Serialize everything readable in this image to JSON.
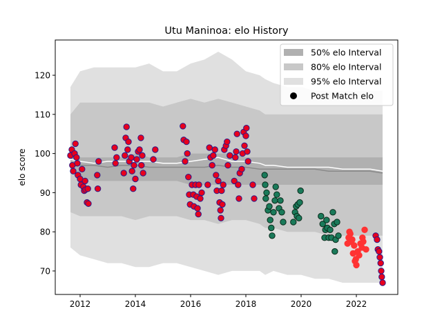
{
  "chart_data": {
    "type": "scatter",
    "title": "Utu Maninoa: elo History",
    "xlabel": "",
    "ylabel": "elo score",
    "xlim": [
      2011.1,
      2023.5
    ],
    "ylim": [
      64,
      129
    ],
    "x_ticks": [
      2012,
      2014,
      2016,
      2018,
      2020,
      2022
    ],
    "y_ticks": [
      70,
      80,
      90,
      100,
      110,
      120
    ],
    "grid": false,
    "legend_position": "top-right",
    "legend": [
      {
        "label": "50% elo Interval",
        "kind": "patch",
        "color": "#b0b0b0"
      },
      {
        "label": "80% elo Interval",
        "kind": "patch",
        "color": "#c8c8c8"
      },
      {
        "label": "95% elo Interval",
        "kind": "patch",
        "color": "#e0e0e0"
      },
      {
        "label": "Post Match elo",
        "kind": "marker",
        "color": "#000000"
      }
    ],
    "bands": {
      "x": [
        2011.65,
        2012.0,
        2012.5,
        2013.0,
        2013.5,
        2014.0,
        2014.5,
        2015.0,
        2015.5,
        2016.0,
        2016.5,
        2017.0,
        2017.5,
        2018.0,
        2018.5,
        2018.7,
        2019.0,
        2019.5,
        2020.0,
        2020.5,
        2021.0,
        2021.5,
        2022.0,
        2022.5,
        2022.95
      ],
      "p95_low": [
        76,
        74,
        73,
        72,
        72,
        71,
        71,
        72,
        72,
        71,
        70,
        69,
        70,
        70,
        70,
        69,
        70,
        69,
        69,
        68,
        68,
        67,
        67,
        67,
        67
      ],
      "p95_high": [
        117,
        121,
        122,
        122,
        122,
        122,
        123,
        121,
        121,
        123,
        124,
        126,
        124,
        121,
        120,
        119,
        118,
        117,
        117,
        116,
        116,
        116,
        116,
        116,
        116
      ],
      "p80_low": [
        85,
        84,
        84,
        84,
        84,
        83,
        84,
        84,
        84,
        83,
        83,
        82,
        83,
        83,
        82,
        81,
        81,
        80,
        80,
        80,
        79,
        79,
        79,
        79,
        79
      ],
      "p80_high": [
        110,
        113,
        113,
        113,
        113,
        113,
        113,
        112,
        113,
        114,
        113,
        114,
        113,
        112,
        111,
        110,
        110,
        110,
        110,
        110,
        110,
        110,
        110,
        110,
        110
      ],
      "p50_low": [
        95,
        94,
        93,
        93,
        93,
        93,
        93,
        93,
        93,
        92,
        92,
        92,
        92,
        92,
        92,
        92,
        92,
        92,
        92,
        92,
        92,
        92,
        92,
        92,
        92
      ],
      "p50_high": [
        99,
        99,
        99,
        99,
        99,
        100,
        99,
        99,
        99,
        100,
        100,
        100,
        100,
        99,
        99,
        99,
        99,
        99,
        99,
        99,
        99,
        99,
        99,
        99,
        99
      ],
      "median": [
        98.5,
        98,
        97.5,
        98,
        98,
        98,
        98,
        97.5,
        97.5,
        98,
        98.5,
        99,
        98,
        98,
        97.5,
        97,
        97,
        96.5,
        96.5,
        96.5,
        96.5,
        96,
        96,
        96,
        95.5
      ],
      "mean": [
        97.5,
        97,
        97,
        96.5,
        97,
        97,
        96.5,
        96.5,
        96.5,
        96.5,
        96.5,
        97,
        96.5,
        96.5,
        96,
        96,
        96,
        96,
        96,
        96,
        95.5,
        95.5,
        95.5,
        95.5,
        95
      ]
    },
    "series": [
      {
        "face": "#e8001c",
        "edge": "#2a1a8a",
        "points": [
          [
            2011.65,
            99.5
          ],
          [
            2011.7,
            101
          ],
          [
            2011.72,
            97
          ],
          [
            2011.75,
            95.5
          ],
          [
            2011.8,
            100
          ],
          [
            2011.83,
            102.5
          ],
          [
            2011.87,
            99
          ],
          [
            2011.9,
            97.5
          ],
          [
            2011.92,
            94.5
          ],
          [
            2012.0,
            93.5
          ],
          [
            2012.03,
            92
          ],
          [
            2012.07,
            96
          ],
          [
            2012.12,
            91.5
          ],
          [
            2012.15,
            90.5
          ],
          [
            2012.18,
            93
          ],
          [
            2012.2,
            90.8
          ],
          [
            2012.25,
            87.5
          ],
          [
            2012.28,
            91
          ],
          [
            2012.3,
            87.2
          ],
          [
            2012.62,
            94.5
          ],
          [
            2012.64,
            91
          ],
          [
            2012.67,
            98
          ],
          [
            2013.25,
            101.5
          ],
          [
            2013.28,
            97.5
          ],
          [
            2013.32,
            99
          ],
          [
            2013.58,
            95
          ],
          [
            2013.62,
            99.5
          ],
          [
            2013.65,
            104
          ],
          [
            2013.68,
            106.8
          ],
          [
            2013.72,
            101
          ],
          [
            2013.75,
            103
          ],
          [
            2013.78,
            98
          ],
          [
            2013.85,
            99
          ],
          [
            2013.88,
            95.5
          ],
          [
            2013.92,
            91
          ],
          [
            2013.95,
            97
          ],
          [
            2014.0,
            93.5
          ],
          [
            2014.05,
            98.5
          ],
          [
            2014.1,
            100.5
          ],
          [
            2014.15,
            101
          ],
          [
            2014.2,
            104
          ],
          [
            2014.22,
            97
          ],
          [
            2014.25,
            99.5
          ],
          [
            2014.28,
            95
          ],
          [
            2014.65,
            98.5
          ],
          [
            2014.72,
            101
          ]
        ]
      },
      {
        "face": "#e8001c",
        "edge": "#2a1a8a",
        "points": [
          [
            2015.72,
            107
          ],
          [
            2015.75,
            103.5
          ],
          [
            2015.8,
            98
          ],
          [
            2015.85,
            103
          ],
          [
            2015.88,
            100
          ],
          [
            2015.92,
            94
          ],
          [
            2015.95,
            89.5
          ],
          [
            2015.98,
            87
          ],
          [
            2016.05,
            92
          ],
          [
            2016.1,
            89.5
          ],
          [
            2016.12,
            86.5
          ],
          [
            2016.18,
            92
          ],
          [
            2016.22,
            89
          ],
          [
            2016.25,
            86
          ],
          [
            2016.28,
            84.5
          ],
          [
            2016.3,
            92
          ],
          [
            2016.35,
            88.5
          ],
          [
            2016.4,
            90
          ],
          [
            2016.62,
            92
          ],
          [
            2016.68,
            101.5
          ],
          [
            2016.72,
            99
          ],
          [
            2016.78,
            97
          ],
          [
            2016.82,
            99.5
          ],
          [
            2016.88,
            101
          ],
          [
            2016.92,
            94.5
          ],
          [
            2016.95,
            90.5
          ],
          [
            2017.0,
            93
          ],
          [
            2017.05,
            87.5
          ],
          [
            2017.08,
            85.5
          ],
          [
            2017.1,
            83.5
          ],
          [
            2017.12,
            90.5
          ],
          [
            2017.15,
            87
          ],
          [
            2017.18,
            92
          ],
          [
            2017.22,
            101
          ],
          [
            2017.28,
            102
          ],
          [
            2017.32,
            103
          ],
          [
            2017.35,
            97
          ],
          [
            2017.42,
            99.5
          ],
          [
            2017.58,
            93
          ],
          [
            2017.62,
            99
          ],
          [
            2017.65,
            100.5
          ],
          [
            2017.68,
            105
          ],
          [
            2017.72,
            92
          ],
          [
            2017.75,
            88.5
          ],
          [
            2017.78,
            95
          ],
          [
            2017.85,
            96
          ],
          [
            2017.88,
            100
          ],
          [
            2017.92,
            105.5
          ],
          [
            2017.95,
            102
          ],
          [
            2018.0,
            104.5
          ],
          [
            2018.02,
            106.5
          ],
          [
            2018.05,
            100.5
          ],
          [
            2018.08,
            98
          ],
          [
            2018.25,
            92
          ],
          [
            2018.3,
            88.5
          ]
        ]
      },
      {
        "face": "#1a7a5a",
        "edge": "#0a2a1a",
        "points": [
          [
            2018.68,
            94.5
          ],
          [
            2018.7,
            92
          ],
          [
            2018.72,
            88.5
          ],
          [
            2018.75,
            90
          ],
          [
            2018.8,
            85.5
          ],
          [
            2018.85,
            86.5
          ],
          [
            2018.88,
            83
          ],
          [
            2018.92,
            81
          ],
          [
            2018.95,
            79
          ],
          [
            2019.0,
            85
          ],
          [
            2019.05,
            88
          ],
          [
            2019.08,
            91.5
          ],
          [
            2019.12,
            89.5
          ],
          [
            2019.2,
            86
          ],
          [
            2019.25,
            88
          ],
          [
            2019.3,
            85
          ],
          [
            2019.35,
            82.5
          ],
          [
            2019.72,
            82.5
          ],
          [
            2019.78,
            85
          ],
          [
            2019.82,
            86.5
          ],
          [
            2019.85,
            84
          ],
          [
            2019.88,
            87
          ],
          [
            2019.92,
            83.5
          ],
          [
            2019.95,
            87.5
          ],
          [
            2019.98,
            90.5
          ],
          [
            2020.72,
            84
          ],
          [
            2020.78,
            82
          ],
          [
            2020.85,
            78.5
          ],
          [
            2020.88,
            80.5
          ],
          [
            2020.92,
            83
          ],
          [
            2020.95,
            81
          ],
          [
            2021.0,
            78.5
          ],
          [
            2021.05,
            80.5
          ],
          [
            2021.1,
            78.5
          ],
          [
            2021.15,
            85
          ],
          [
            2021.2,
            82
          ],
          [
            2021.22,
            75
          ],
          [
            2021.25,
            78
          ],
          [
            2021.3,
            82.5
          ],
          [
            2021.35,
            79
          ]
        ]
      },
      {
        "face": "#ff3333",
        "edge": "#ff3333",
        "points": [
          [
            2021.68,
            77
          ],
          [
            2021.72,
            78.5
          ],
          [
            2021.75,
            80
          ],
          [
            2021.78,
            79.5
          ],
          [
            2021.82,
            77.5
          ],
          [
            2021.85,
            78
          ],
          [
            2021.88,
            74.5
          ],
          [
            2021.92,
            76.5
          ],
          [
            2021.95,
            72.5
          ],
          [
            2021.98,
            73
          ],
          [
            2022.0,
            71.5
          ],
          [
            2022.05,
            75
          ],
          [
            2022.1,
            74
          ],
          [
            2022.15,
            77
          ],
          [
            2022.2,
            76
          ],
          [
            2022.22,
            78.5
          ],
          [
            2022.25,
            77.5
          ],
          [
            2022.3,
            80.5
          ],
          [
            2022.35,
            75.5
          ]
        ]
      },
      {
        "face": "#e8001c",
        "edge": "#2a1a8a",
        "points": [
          [
            2022.7,
            79
          ],
          [
            2022.75,
            78
          ],
          [
            2022.78,
            75.5
          ],
          [
            2022.82,
            75
          ],
          [
            2022.85,
            73.5
          ],
          [
            2022.88,
            72
          ],
          [
            2022.9,
            70
          ],
          [
            2022.92,
            68.5
          ],
          [
            2022.95,
            67
          ]
        ]
      }
    ]
  }
}
